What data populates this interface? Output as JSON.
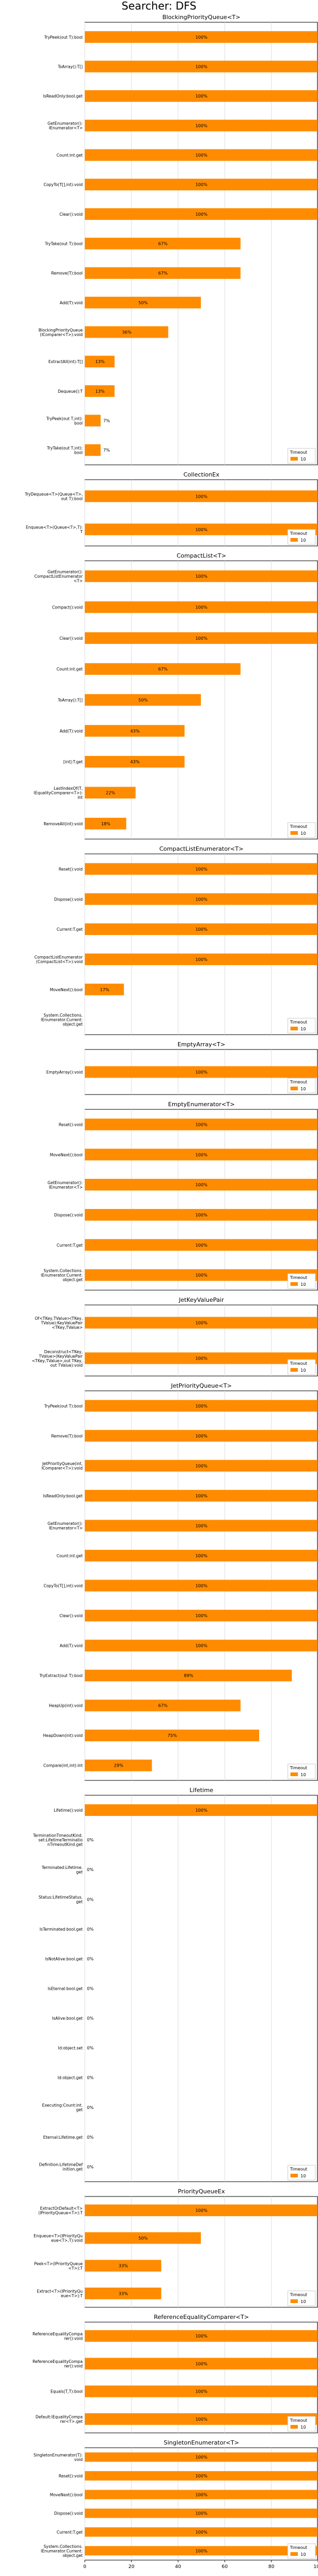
{
  "title": "Searcher: DFS",
  "chart_data": {
    "type": "bar",
    "orientation": "horizontal",
    "xlim": [
      0,
      100
    ],
    "x_ticks": [
      0,
      20,
      40,
      60,
      80,
      100
    ],
    "grid": true,
    "legend_position": "bottom-right",
    "bar_color": "#ff8c00",
    "series": [
      {
        "name": "Timeout",
        "value_label": "10"
      }
    ],
    "panels": [
      {
        "title": "BlockingPriorityQueue<T>",
        "legend_title": "Timeout",
        "legend_label": "10",
        "categories": [
          "TryPeek(out T):bool",
          "ToArray():T[]",
          "IsReadOnly:bool.get",
          "GetEnumerator():IEnumerator<T>",
          "Count:int.get",
          "CopyTo(T[],int):void",
          "Clear():void",
          "TryTake(out T):bool",
          "Remove(T):bool",
          "Add(T):void",
          "BlockingPriorityQueue(IComparer<T>):void",
          "ExtractAll(int):T[]",
          "Dequeue():T",
          "TryPeek(out T,int):bool",
          "TryTake(out T,int):bool"
        ],
        "values": [
          100,
          100,
          100,
          100,
          100,
          100,
          100,
          67,
          67,
          50,
          36,
          13,
          13,
          7,
          7
        ],
        "labels": [
          "100%",
          "100%",
          "100%",
          "100%",
          "100%",
          "100%",
          "100%",
          "67%",
          "67%",
          "50%",
          "36%",
          "13%",
          "13%",
          "7%",
          "7%"
        ]
      },
      {
        "title": "CollectionEx",
        "legend_title": "Timeout",
        "legend_label": "10",
        "categories": [
          "TryDequeue<T>(Queue<T>,out T):bool",
          "Enqueue<T>(Queue<T>,T):T"
        ],
        "values": [
          100,
          100
        ],
        "labels": [
          "100%",
          "100%"
        ]
      },
      {
        "title": "CompactList<T>",
        "legend_title": "Timeout",
        "legend_label": "10",
        "categories": [
          "GetEnumerator():CompactListEnumerator<T>",
          "Compact():void",
          "Clear():void",
          "Count:int.get",
          "ToArray():T[]",
          "Add(T):void",
          "[int]:T.get",
          "LastIndexOf(T,IEqualityComparer<T>):int",
          "RemoveAll(int):void"
        ],
        "values": [
          100,
          100,
          100,
          67,
          50,
          43,
          43,
          22,
          18
        ],
        "labels": [
          "100%",
          "100%",
          "100%",
          "67%",
          "50%",
          "43%",
          "43%",
          "22%",
          "18%"
        ]
      },
      {
        "title": "CompactListEnumerator<T>",
        "legend_title": "Timeout",
        "legend_label": "10",
        "categories": [
          "Reset():void",
          "Dispose():void",
          "Current:T.get",
          "CompactListEnumerator(CompactList<T>):void",
          "MoveNext():bool",
          "System.Collections.IEnumerator.Current:object.get"
        ],
        "values": [
          100,
          100,
          100,
          100,
          17,
          0
        ],
        "labels": [
          "100%",
          "100%",
          "100%",
          "100%",
          "17%",
          ""
        ]
      },
      {
        "title": "EmptyArray<T>",
        "legend_title": "Timeout",
        "legend_label": "10",
        "categories": [
          "EmptyArray():void"
        ],
        "values": [
          100
        ],
        "labels": [
          "100%"
        ]
      },
      {
        "title": "EmptyEnumerator<T>",
        "legend_title": "Timeout",
        "legend_label": "10",
        "categories": [
          "Reset():void",
          "MoveNext():bool",
          "GetEnumerator():IEnumerator<T>",
          "Dispose():void",
          "Current:T.get",
          "System.Collections.IEnumerator.Current:object.get"
        ],
        "values": [
          100,
          100,
          100,
          100,
          100,
          100
        ],
        "labels": [
          "100%",
          "100%",
          "100%",
          "100%",
          "100%",
          "100%"
        ]
      },
      {
        "title": "JetKeyValuePair",
        "legend_title": "Timeout",
        "legend_label": "10",
        "categories": [
          "Of<TKey,TValue>(TKey,TValue):KeyValuePair<TKey,TValue>",
          "Deconstruct<TKey,TValue>(KeyValuePair<TKey,TValue>,out TKey,out TValue):void"
        ],
        "values": [
          100,
          100
        ],
        "labels": [
          "100%",
          "100%"
        ]
      },
      {
        "title": "JetPriorityQueue<T>",
        "legend_title": "Timeout",
        "legend_label": "10",
        "categories": [
          "TryPeek(out T):bool",
          "Remove(T):bool",
          "JetPriorityQueue(int,IComparer<T>):void",
          "IsReadOnly:bool.get",
          "GetEnumerator():IEnumerator<T>",
          "Count:int.get",
          "CopyTo(T[],int):void",
          "Clear():void",
          "Add(T):void",
          "TryExtract(out T):bool",
          "HeapUp(int):void",
          "HeapDown(int):void",
          "Compare(int,int):int"
        ],
        "values": [
          100,
          100,
          100,
          100,
          100,
          100,
          100,
          100,
          100,
          89,
          67,
          75,
          29
        ],
        "labels": [
          "100%",
          "100%",
          "100%",
          "100%",
          "100%",
          "100%",
          "100%",
          "100%",
          "100%",
          "89%",
          "67%",
          "75%",
          "29%"
        ]
      },
      {
        "title": "Lifetime",
        "legend_title": "Timeout",
        "legend_label": "10",
        "categories": [
          "Lifetime():void",
          "TerminationTimeoutKind.set:LifetimeTerminationTimeoutKind.get",
          "Terminated:Lifetime.get",
          "Status:LifetimeStatus.get",
          "IsTerminated:bool.get",
          "IsNotAlive:bool.get",
          "IsEternal:bool.get",
          "IsAlive:bool.get",
          "Id:object.set",
          "Id:object.get",
          "Executing:Count:int.get",
          "Eternal:Lifetime.get",
          "Definition:LifetimeDefinition.get"
        ],
        "values": [
          100,
          0,
          0,
          0,
          0,
          0,
          0,
          0,
          0,
          0,
          0,
          0,
          0
        ],
        "labels": [
          "100%",
          "0%",
          "0%",
          "0%",
          "0%",
          "0%",
          "0%",
          "0%",
          "0%",
          "0%",
          "0%",
          "0%",
          "0%"
        ]
      },
      {
        "title": "PriorityQueueEx",
        "legend_title": "Timeout",
        "legend_label": "10",
        "categories": [
          "ExtractOrDefault<T>(IPriorityQueue<T>):T",
          "Enqueue<T>(IPriorityQueue<T>,T):void",
          "Peek<T>(IPriorityQueue<T>):T",
          "Extract<T>(IPriorityQueue<T>):T"
        ],
        "values": [
          100,
          50,
          33,
          33
        ],
        "labels": [
          "100%",
          "50%",
          "33%",
          "33%"
        ]
      },
      {
        "title": "ReferenceEqualityComparer<T>",
        "legend_title": "Timeout",
        "legend_label": "10",
        "categories": [
          "ReferenceEqualityComparer():void",
          "ReferenceEqualityComparer():void",
          "Equals(T,T):bool",
          "Default:IEqualityComparer<T>.get"
        ],
        "values": [
          100,
          100,
          100,
          100
        ],
        "labels": [
          "100%",
          "100%",
          "100%",
          "100%"
        ]
      },
      {
        "title": "SingletonEnumerator<T>",
        "legend_title": "Timeout",
        "legend_label": "10",
        "categories": [
          "SingletonEnumerator(T):void",
          "Reset():void",
          "MoveNext():bool",
          "Dispose():void",
          "Current:T.get",
          "System.Collections.IEnumerator.Current:object.get"
        ],
        "values": [
          100,
          100,
          100,
          100,
          100,
          100
        ],
        "labels": [
          "100%",
          "100%",
          "100%",
          "100%",
          "100%",
          "100%"
        ]
      }
    ]
  }
}
